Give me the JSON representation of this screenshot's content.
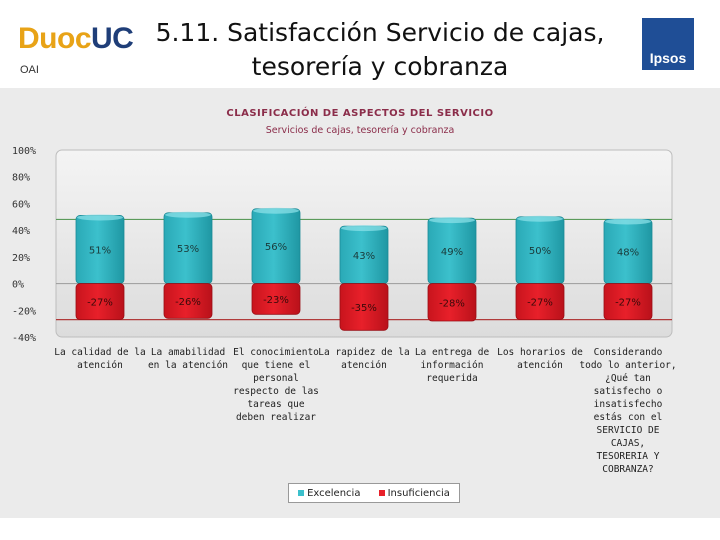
{
  "header": {
    "logo_brand": "Duoc",
    "logo_brand_accent": "UC",
    "logo_sub": "OAI",
    "title_line1": "5.11. Satisfacción Servicio de cajas,",
    "title_line2": "tesorería y cobranza",
    "partner_logo": "Ipsos"
  },
  "colors": {
    "excelencia": "#3cc0cc",
    "insuficiencia": "#e8202a",
    "line_green": "#5b9b5b",
    "line_red": "#b03a3a"
  },
  "chart_data": {
    "type": "bar",
    "title": "CLASIFICACIÓN DE ASPECTOS DEL SERVICIO",
    "subtitle": "Servicios de cajas, tesorería y cobranza",
    "ylim": [
      -40,
      100
    ],
    "yticks": [
      "100%",
      "80%",
      "60%",
      "40%",
      "20%",
      "0%",
      "-20%",
      "-40%"
    ],
    "categories": [
      [
        "La calidad de la",
        "atención"
      ],
      [
        "La amabilidad",
        "en la atención"
      ],
      [
        "El conocimiento",
        "que tiene el",
        "personal",
        "respecto de las",
        "tareas que",
        "deben realizar"
      ],
      [
        "La rapidez de la",
        "atención"
      ],
      [
        "La entrega de",
        "información",
        "requerida"
      ],
      [
        "Los horarios de",
        "atención"
      ],
      [
        "Considerando",
        "todo lo anterior,",
        "¿Qué tan",
        "satisfecho o",
        "insatisfecho",
        "estás con el",
        "SERVICIO DE",
        "CAJAS,",
        "TESORERIA Y",
        "COBRANZA?"
      ]
    ],
    "series": [
      {
        "name": "Excelencia",
        "values": [
          51,
          53,
          56,
          43,
          49,
          50,
          48
        ],
        "labels": [
          "51%",
          "53%",
          "56%",
          "43%",
          "49%",
          "50%",
          "48%"
        ]
      },
      {
        "name": "Insuficiencia",
        "values": [
          -27,
          -26,
          -23,
          -35,
          -28,
          -27,
          -27
        ],
        "labels": [
          "-27%",
          "-26%",
          "-23%",
          "-35%",
          "-28%",
          "-27%",
          "-27%"
        ]
      }
    ],
    "reference_lines": {
      "upper": 48,
      "lower": -27
    },
    "legend": [
      "Excelencia",
      "Insuficiencia"
    ]
  }
}
